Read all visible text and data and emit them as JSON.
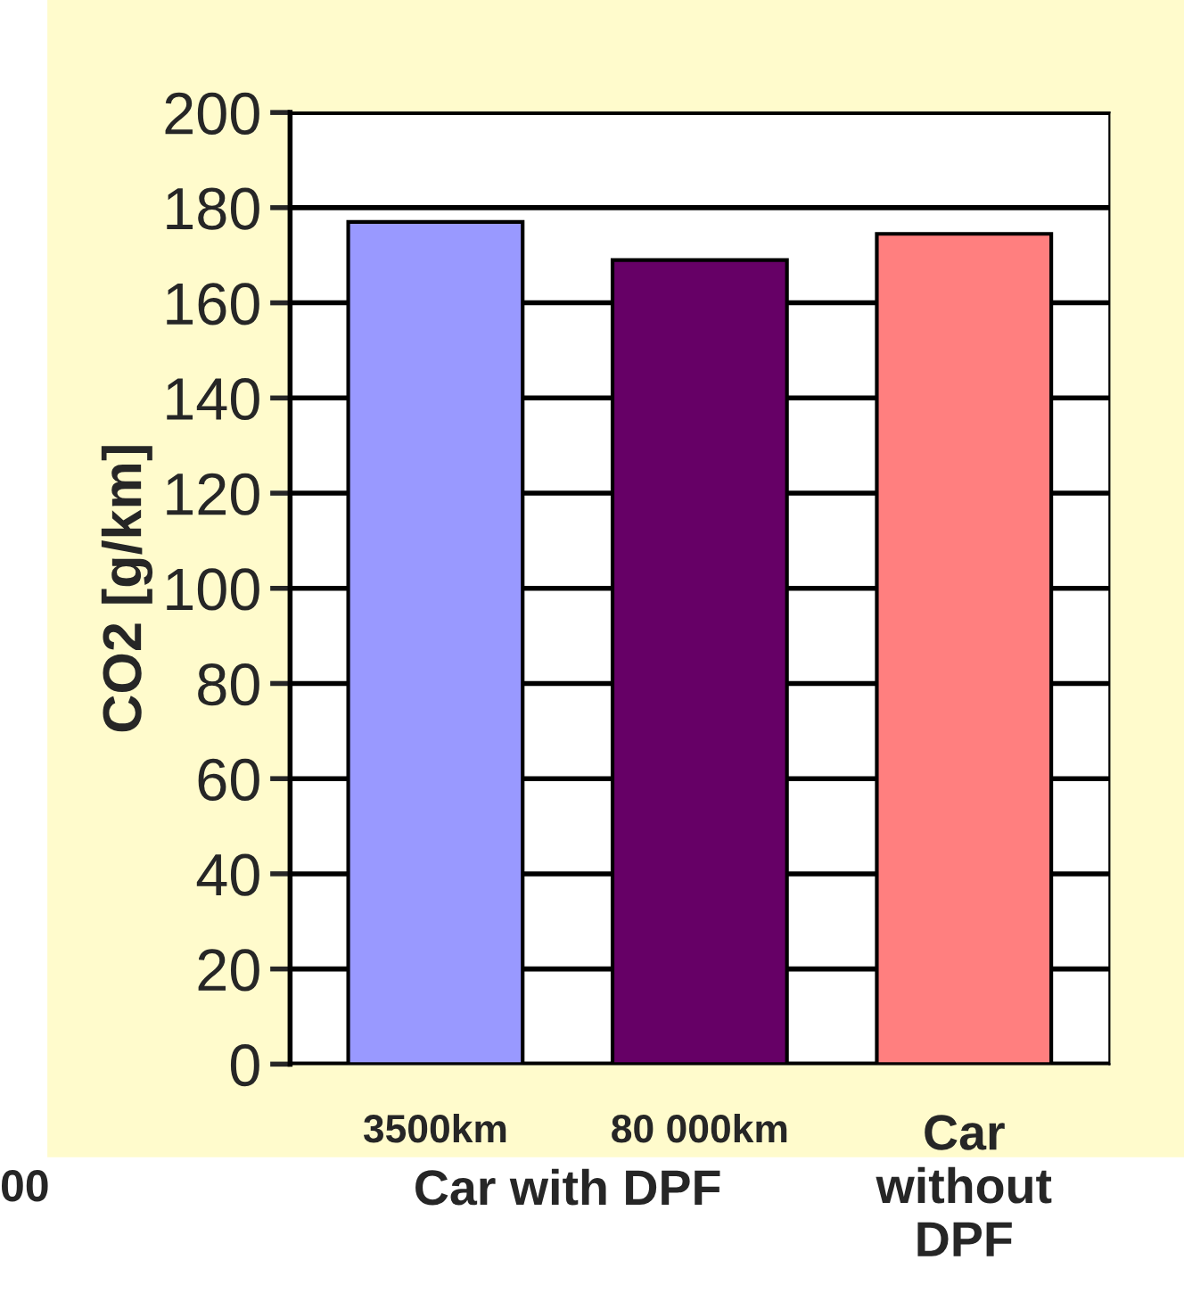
{
  "chart_data": {
    "type": "bar",
    "ylabel": "CO2 [g/km]",
    "categories": [
      "3500km",
      "80 000km",
      "Car\nwithout\nDPF"
    ],
    "values": [
      177,
      169,
      174.5
    ],
    "colors": [
      "#9999ff",
      "#660066",
      "#ff7f7f"
    ],
    "ylim": [
      0,
      200
    ],
    "yticks": [
      0,
      20,
      40,
      60,
      80,
      100,
      120,
      140,
      160,
      180,
      200
    ],
    "grid": "y",
    "annotations": [
      "Car with DPF",
      "00"
    ]
  }
}
